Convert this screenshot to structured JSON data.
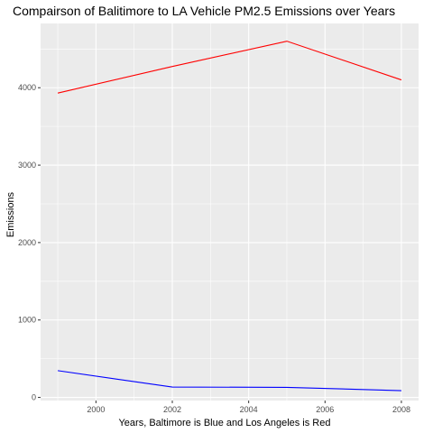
{
  "chart_data": {
    "type": "line",
    "title": "Compairson of Balitimore to LA Vehicle PM2.5 Emissions over Years",
    "xlabel": "Years, Baltimore is Blue and Los Angeles is Red",
    "ylabel": "Emissions",
    "x": [
      1999,
      2002,
      2005,
      2008
    ],
    "xlim": [
      1998.55,
      2008.45
    ],
    "ylim": [
      -40,
      4830
    ],
    "xticks": [
      "2000",
      "2002",
      "2004",
      "2006",
      "2008"
    ],
    "yticks": [
      "0",
      "1000",
      "2000",
      "3000",
      "4000"
    ],
    "grid": true,
    "legend": "none",
    "series": [
      {
        "color": "#ff0000",
        "values": [
          3931,
          4274,
          4601,
          4101
        ]
      },
      {
        "color": "#0000ff",
        "values": [
          346,
          134,
          130,
          88
        ]
      }
    ]
  }
}
